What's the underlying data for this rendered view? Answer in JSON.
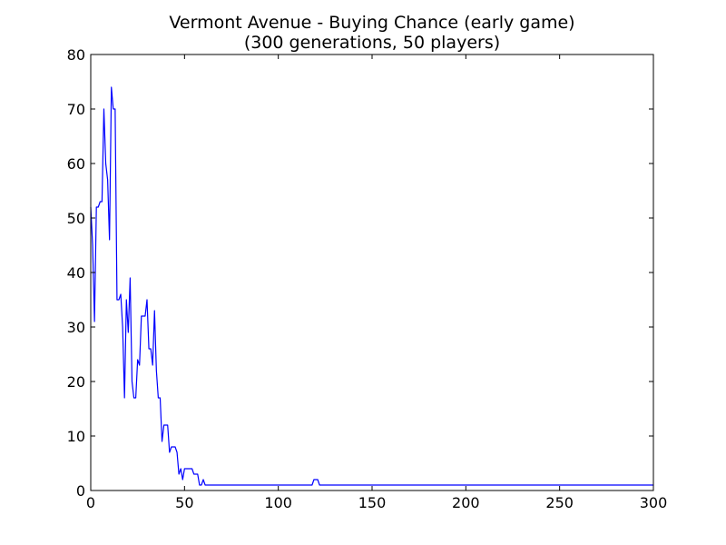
{
  "chart_data": {
    "type": "line",
    "title_line1": "Vermont Avenue - Buying Chance (early game)",
    "title_line2": "(300 generations, 50 players)",
    "xlabel": "",
    "ylabel": "",
    "xlim": [
      0,
      300
    ],
    "ylim": [
      0,
      80
    ],
    "xticks": [
      "0",
      "50",
      "100",
      "150",
      "200",
      "250",
      "300"
    ],
    "yticks": [
      "0",
      "10",
      "20",
      "30",
      "40",
      "50",
      "60",
      "70",
      "80"
    ],
    "grid": false,
    "line_color": "#0000ff",
    "series": [
      {
        "points": [
          [
            0,
            52
          ],
          [
            1,
            45
          ],
          [
            2,
            31
          ],
          [
            3,
            52
          ],
          [
            4,
            52
          ],
          [
            5,
            53
          ],
          [
            6,
            53
          ],
          [
            7,
            70
          ],
          [
            8,
            60
          ],
          [
            9,
            57
          ],
          [
            10,
            46
          ],
          [
            11,
            74
          ],
          [
            12,
            70
          ],
          [
            13,
            70
          ],
          [
            14,
            35
          ],
          [
            15,
            35
          ],
          [
            16,
            36
          ],
          [
            17,
            30
          ],
          [
            18,
            17
          ],
          [
            19,
            35
          ],
          [
            20,
            29
          ],
          [
            21,
            39
          ],
          [
            22,
            20
          ],
          [
            23,
            17
          ],
          [
            24,
            17
          ],
          [
            25,
            24
          ],
          [
            26,
            23
          ],
          [
            27,
            32
          ],
          [
            28,
            32
          ],
          [
            29,
            32
          ],
          [
            30,
            35
          ],
          [
            31,
            26
          ],
          [
            32,
            26
          ],
          [
            33,
            23
          ],
          [
            34,
            33
          ],
          [
            35,
            22
          ],
          [
            36,
            17
          ],
          [
            37,
            17
          ],
          [
            38,
            9
          ],
          [
            39,
            12
          ],
          [
            40,
            12
          ],
          [
            41,
            12
          ],
          [
            42,
            7
          ],
          [
            43,
            8
          ],
          [
            44,
            8
          ],
          [
            45,
            8
          ],
          [
            46,
            7
          ],
          [
            47,
            3
          ],
          [
            48,
            4
          ],
          [
            49,
            2
          ],
          [
            50,
            4
          ],
          [
            51,
            4
          ],
          [
            52,
            4
          ],
          [
            53,
            4
          ],
          [
            54,
            4
          ],
          [
            55,
            3
          ],
          [
            56,
            3
          ],
          [
            57,
            3
          ],
          [
            58,
            1
          ],
          [
            59,
            1
          ],
          [
            60,
            2
          ],
          [
            61,
            1
          ],
          [
            62,
            1
          ],
          [
            118,
            1
          ],
          [
            119,
            2
          ],
          [
            120,
            2
          ],
          [
            121,
            2
          ],
          [
            122,
            1
          ],
          [
            300,
            1
          ]
        ]
      }
    ]
  }
}
